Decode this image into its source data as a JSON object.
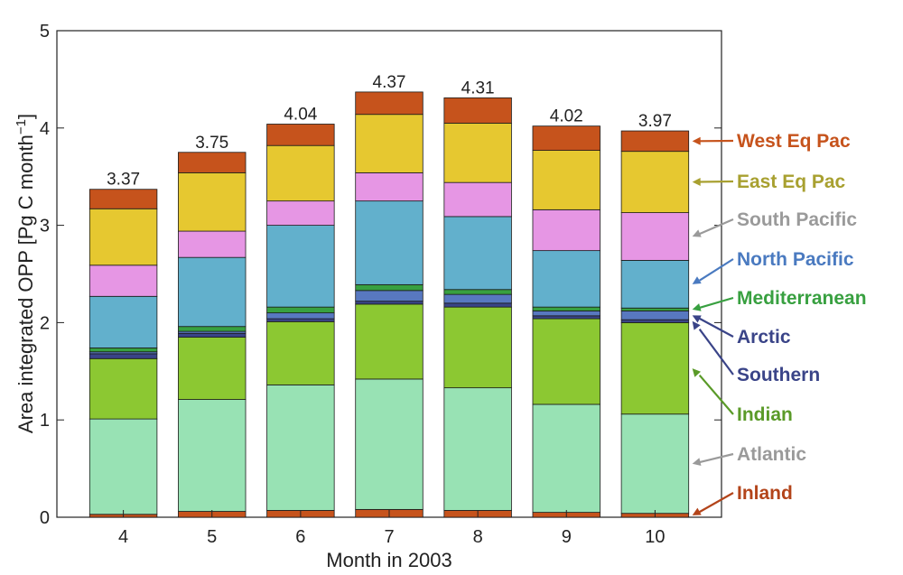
{
  "chart_data": {
    "type": "bar",
    "stacked": true,
    "xlabel": "Month in 2003",
    "ylabel": "Area integrated OPP [Pg C month",
    "ylabel_superscript": "−1",
    "ylabel_suffix": "]",
    "ylim": [
      0,
      5
    ],
    "yticks": [
      "0",
      "1",
      "2",
      "3",
      "4",
      "5"
    ],
    "categories": [
      "4",
      "5",
      "6",
      "7",
      "8",
      "9",
      "10"
    ],
    "totals": [
      "3.37",
      "3.75",
      "4.04",
      "4.37",
      "4.31",
      "4.02",
      "3.97"
    ],
    "series": [
      {
        "name": "Inland",
        "color": "#c6531c",
        "label_color": "#b3441a",
        "values": [
          0.03,
          0.06,
          0.07,
          0.08,
          0.07,
          0.05,
          0.04
        ]
      },
      {
        "name": "Atlantic",
        "color": "#98e2b4",
        "label_color": "#9a9a9a",
        "values": [
          0.98,
          1.15,
          1.29,
          1.34,
          1.26,
          1.11,
          1.02
        ]
      },
      {
        "name": "Indian",
        "color": "#8cc832",
        "label_color": "#5a9a28",
        "values": [
          0.62,
          0.64,
          0.65,
          0.77,
          0.83,
          0.88,
          0.94
        ]
      },
      {
        "name": "Southern",
        "color": "#3a4488",
        "label_color": "#3a4488",
        "values": [
          0.05,
          0.04,
          0.03,
          0.03,
          0.04,
          0.03,
          0.03
        ]
      },
      {
        "name": "Arctic",
        "color": "#5878c0",
        "label_color": "#3a4488",
        "values": [
          0.02,
          0.02,
          0.06,
          0.11,
          0.09,
          0.05,
          0.09
        ]
      },
      {
        "name": "Mediterranean",
        "color": "#38a040",
        "label_color": "#38a040",
        "values": [
          0.04,
          0.05,
          0.06,
          0.06,
          0.05,
          0.04,
          0.03
        ]
      },
      {
        "name": "North Pacific",
        "color": "#62b0cc",
        "label_color": "#4a7ac0",
        "values": [
          0.53,
          0.71,
          0.84,
          0.86,
          0.75,
          0.58,
          0.49
        ]
      },
      {
        "name": "South Pacific",
        "color": "#e696e4",
        "label_color": "#9a9a9a",
        "values": [
          0.32,
          0.27,
          0.25,
          0.29,
          0.35,
          0.42,
          0.49
        ]
      },
      {
        "name": "East Eq Pac",
        "color": "#e6c830",
        "label_color": "#a8a030",
        "values": [
          0.58,
          0.6,
          0.57,
          0.6,
          0.61,
          0.61,
          0.63
        ]
      },
      {
        "name": "West Eq Pac",
        "color": "#c6531c",
        "label_color": "#c6531c",
        "values": [
          0.2,
          0.21,
          0.22,
          0.23,
          0.26,
          0.25,
          0.21
        ]
      }
    ]
  }
}
